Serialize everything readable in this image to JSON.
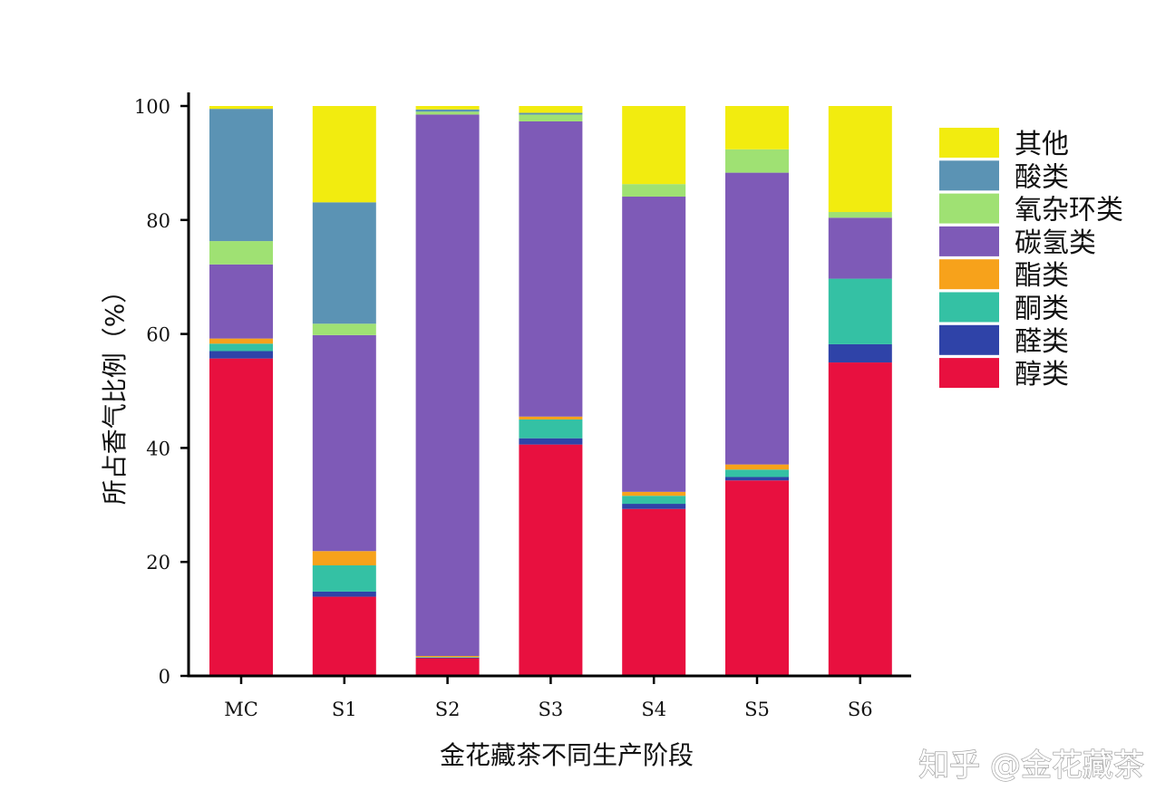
{
  "chart_data": {
    "type": "bar",
    "stacked": true,
    "xlabel": "金花藏茶不同生产阶段",
    "ylabel": "所占香气比例（%）",
    "ylim": [
      0,
      100
    ],
    "yticks": [
      0,
      20,
      40,
      60,
      80,
      100
    ],
    "categories": [
      "MC",
      "S1",
      "S2",
      "S3",
      "S4",
      "S5",
      "S6"
    ],
    "grid": false,
    "legend_position": "right",
    "series": [
      {
        "name": "醇类",
        "color": "#e8103f",
        "values": [
          55.7,
          13.9,
          3.1,
          40.6,
          29.3,
          34.3,
          55.0
        ]
      },
      {
        "name": "醛类",
        "color": "#2f43a8",
        "values": [
          1.3,
          0.9,
          0.1,
          1.1,
          0.9,
          0.6,
          3.2
        ]
      },
      {
        "name": "酮类",
        "color": "#34c1a4",
        "values": [
          1.3,
          4.6,
          0.1,
          3.3,
          1.4,
          1.3,
          11.5
        ]
      },
      {
        "name": "酯类",
        "color": "#f7a21b",
        "values": [
          0.9,
          2.5,
          0.2,
          0.5,
          0.7,
          0.9,
          0.0
        ]
      },
      {
        "name": "碳氢类",
        "color": "#7e5ab7",
        "values": [
          13.0,
          37.9,
          95.0,
          51.8,
          51.8,
          51.2,
          10.7
        ]
      },
      {
        "name": "氧杂环类",
        "color": "#9fe173",
        "values": [
          4.1,
          2.0,
          0.5,
          1.2,
          2.2,
          4.1,
          1.0
        ]
      },
      {
        "name": "酸类",
        "color": "#5b93b4",
        "values": [
          23.2,
          21.3,
          0.4,
          0.3,
          0.0,
          0.0,
          0.0
        ]
      },
      {
        "name": "其他",
        "color": "#f2ec0f",
        "values": [
          0.5,
          16.9,
          0.6,
          1.2,
          13.7,
          7.6,
          18.6
        ]
      }
    ]
  },
  "watermark": "知乎 @金花藏茶"
}
